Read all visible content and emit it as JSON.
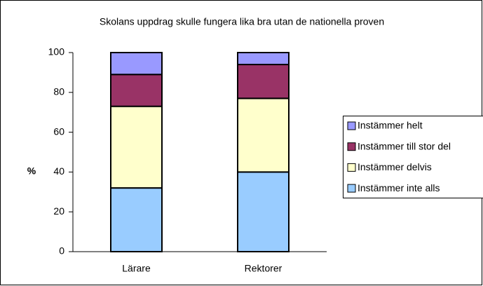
{
  "chart_data": {
    "type": "stacked_bar",
    "title": "Skolans uppdrag skulle fungera lika bra utan de nationella proven",
    "y_label": "%",
    "categories": [
      "Lärare",
      "Rektorer"
    ],
    "series": [
      {
        "name": "Instämmer inte alls",
        "color": "#99ccff",
        "values": [
          32,
          40
        ]
      },
      {
        "name": "Instämmer delvis",
        "color": "#ffffcc",
        "values": [
          41,
          37
        ]
      },
      {
        "name": "Instämmer till stor del",
        "color": "#993366",
        "values": [
          16,
          17
        ]
      },
      {
        "name": "Instämmer helt",
        "color": "#9999ff",
        "values": [
          11,
          6
        ]
      }
    ],
    "ylim": [
      0,
      100
    ],
    "yticks": [
      0,
      20,
      40,
      60,
      80,
      100
    ],
    "legend": "right"
  }
}
